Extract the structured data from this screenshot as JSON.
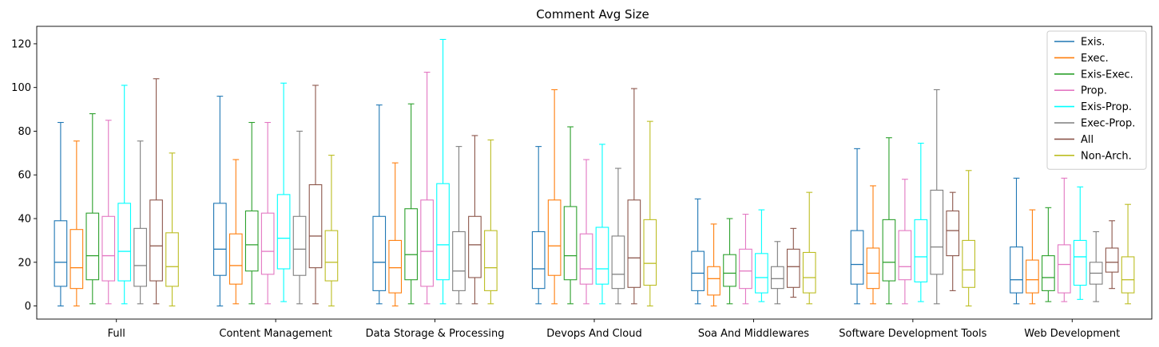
{
  "chart_data": {
    "type": "box",
    "title": "Comment Avg Size",
    "xlabel": "",
    "ylabel": "",
    "ylim": [
      -6,
      128
    ],
    "yticks": [
      0,
      20,
      40,
      60,
      80,
      100,
      120
    ],
    "grid": false,
    "legend_position": "top-right",
    "categories": [
      "Full",
      "Content Management",
      "Data Storage & Processing",
      "Devops And Cloud",
      "Soa And Middlewares",
      "Software Development Tools",
      "Web Development"
    ],
    "series": [
      {
        "name": "Exis.",
        "color": "#1f77b4",
        "boxes": [
          {
            "whislo": 0,
            "q1": 9,
            "med": 20,
            "q3": 39,
            "whishi": 84
          },
          {
            "whislo": 0,
            "q1": 14,
            "med": 26,
            "q3": 47,
            "whishi": 96
          },
          {
            "whislo": 1,
            "q1": 7,
            "med": 20,
            "q3": 41,
            "whishi": 92
          },
          {
            "whislo": 1,
            "q1": 8,
            "med": 17,
            "q3": 34,
            "whishi": 73
          },
          {
            "whislo": 1,
            "q1": 7,
            "med": 15,
            "q3": 25,
            "whishi": 49
          },
          {
            "whislo": 1,
            "q1": 10,
            "med": 19,
            "q3": 34.5,
            "whishi": 72
          },
          {
            "whislo": 1,
            "q1": 6,
            "med": 12,
            "q3": 27,
            "whishi": 58.5
          }
        ]
      },
      {
        "name": "Exec.",
        "color": "#ff7f0e",
        "boxes": [
          {
            "whislo": 0,
            "q1": 8,
            "med": 17.5,
            "q3": 35,
            "whishi": 75.5
          },
          {
            "whislo": 1,
            "q1": 10,
            "med": 18.5,
            "q3": 33,
            "whishi": 67
          },
          {
            "whislo": 0,
            "q1": 6,
            "med": 17.5,
            "q3": 30,
            "whishi": 65.5
          },
          {
            "whislo": 1,
            "q1": 14,
            "med": 27.5,
            "q3": 48.5,
            "whishi": 99
          },
          {
            "whislo": 0,
            "q1": 5,
            "med": 12.5,
            "q3": 18,
            "whishi": 37.5
          },
          {
            "whislo": 1,
            "q1": 8,
            "med": 15,
            "q3": 26.5,
            "whishi": 55
          },
          {
            "whislo": 1,
            "q1": 6,
            "med": 12,
            "q3": 21,
            "whishi": 44
          }
        ]
      },
      {
        "name": "Exis-Exec.",
        "color": "#2ca02c",
        "boxes": [
          {
            "whislo": 1,
            "q1": 12,
            "med": 23,
            "q3": 42.5,
            "whishi": 88
          },
          {
            "whislo": 1,
            "q1": 16,
            "med": 28,
            "q3": 43.5,
            "whishi": 84
          },
          {
            "whislo": 1,
            "q1": 12,
            "med": 23.5,
            "q3": 44.5,
            "whishi": 92.5
          },
          {
            "whislo": 1,
            "q1": 12,
            "med": 23,
            "q3": 45.5,
            "whishi": 82
          },
          {
            "whislo": 1,
            "q1": 9,
            "med": 15,
            "q3": 23.5,
            "whishi": 40
          },
          {
            "whislo": 1,
            "q1": 11.5,
            "med": 20,
            "q3": 39.5,
            "whishi": 77
          },
          {
            "whislo": 2,
            "q1": 7,
            "med": 13,
            "q3": 23,
            "whishi": 45
          }
        ]
      },
      {
        "name": "Prop.",
        "color": "#e377c2",
        "boxes": [
          {
            "whislo": 1,
            "q1": 11.5,
            "med": 23,
            "q3": 41,
            "whishi": 85
          },
          {
            "whislo": 1,
            "q1": 14.5,
            "med": 25,
            "q3": 42.5,
            "whishi": 84
          },
          {
            "whislo": 1,
            "q1": 9,
            "med": 25,
            "q3": 48.5,
            "whishi": 107
          },
          {
            "whislo": 1,
            "q1": 10,
            "med": 17,
            "q3": 33,
            "whishi": 67
          },
          {
            "whislo": 1,
            "q1": 8,
            "med": 16,
            "q3": 26,
            "whishi": 42
          },
          {
            "whislo": 1,
            "q1": 12,
            "med": 18,
            "q3": 34.5,
            "whishi": 58
          },
          {
            "whislo": 2,
            "q1": 6,
            "med": 19,
            "q3": 28,
            "whishi": 58.5
          }
        ]
      },
      {
        "name": "Exis-Prop.",
        "color": "#00ffff",
        "boxes": [
          {
            "whislo": 1,
            "q1": 11.5,
            "med": 25,
            "q3": 47,
            "whishi": 101
          },
          {
            "whislo": 2,
            "q1": 17,
            "med": 31,
            "q3": 51,
            "whishi": 102
          },
          {
            "whislo": 1,
            "q1": 12,
            "med": 28,
            "q3": 56,
            "whishi": 122
          },
          {
            "whislo": 1,
            "q1": 10,
            "med": 17,
            "q3": 36,
            "whishi": 74
          },
          {
            "whislo": 2,
            "q1": 6,
            "med": 13,
            "q3": 24,
            "whishi": 44
          },
          {
            "whislo": 2,
            "q1": 11,
            "med": 22.5,
            "q3": 39.5,
            "whishi": 74.5
          },
          {
            "whislo": 3,
            "q1": 9.5,
            "med": 22.5,
            "q3": 30,
            "whishi": 54.5
          }
        ]
      },
      {
        "name": "Exec-Prop.",
        "color": "#7f7f7f",
        "boxes": [
          {
            "whislo": 1,
            "q1": 9,
            "med": 18.5,
            "q3": 35.5,
            "whishi": 75.5
          },
          {
            "whislo": 1,
            "q1": 14,
            "med": 26,
            "q3": 41,
            "whishi": 80
          },
          {
            "whislo": 1,
            "q1": 7,
            "med": 16,
            "q3": 34,
            "whishi": 73
          },
          {
            "whislo": 1,
            "q1": 8,
            "med": 14.5,
            "q3": 32,
            "whishi": 63
          },
          {
            "whislo": 1,
            "q1": 8,
            "med": 12.5,
            "q3": 18,
            "whishi": 29.5
          },
          {
            "whislo": 1,
            "q1": 14.5,
            "med": 27,
            "q3": 53,
            "whishi": 99
          },
          {
            "whislo": 2,
            "q1": 10,
            "med": 15,
            "q3": 20,
            "whishi": 34
          }
        ]
      },
      {
        "name": "All",
        "color": "#8c564b",
        "boxes": [
          {
            "whislo": 1,
            "q1": 11.5,
            "med": 27.5,
            "q3": 48.5,
            "whishi": 104
          },
          {
            "whislo": 1,
            "q1": 17.5,
            "med": 32,
            "q3": 55.5,
            "whishi": 101
          },
          {
            "whislo": 1,
            "q1": 13,
            "med": 28,
            "q3": 41,
            "whishi": 78
          },
          {
            "whislo": 1,
            "q1": 8.5,
            "med": 22,
            "q3": 48.5,
            "whishi": 99.5
          },
          {
            "whislo": 4,
            "q1": 8.5,
            "med": 18,
            "q3": 26,
            "whishi": 35.5
          },
          {
            "whislo": 7,
            "q1": 23,
            "med": 34.5,
            "q3": 43.5,
            "whishi": 52
          },
          {
            "whislo": 8,
            "q1": 15.5,
            "med": 20,
            "q3": 26.5,
            "whishi": 39
          }
        ]
      },
      {
        "name": "Non-Arch.",
        "color": "#bcbd22",
        "boxes": [
          {
            "whislo": 0,
            "q1": 9,
            "med": 18,
            "q3": 33.5,
            "whishi": 70
          },
          {
            "whislo": 0,
            "q1": 11.5,
            "med": 20,
            "q3": 34.5,
            "whishi": 69
          },
          {
            "whislo": 1,
            "q1": 7,
            "med": 17.5,
            "q3": 34.5,
            "whishi": 76
          },
          {
            "whislo": 0,
            "q1": 9.5,
            "med": 19.5,
            "q3": 39.5,
            "whishi": 84.5
          },
          {
            "whislo": 1,
            "q1": 6,
            "med": 13,
            "q3": 24.5,
            "whishi": 52
          },
          {
            "whislo": 0,
            "q1": 8.5,
            "med": 16.5,
            "q3": 30,
            "whishi": 62
          },
          {
            "whislo": 1,
            "q1": 6,
            "med": 12,
            "q3": 22.5,
            "whishi": 46.5
          }
        ]
      }
    ]
  }
}
